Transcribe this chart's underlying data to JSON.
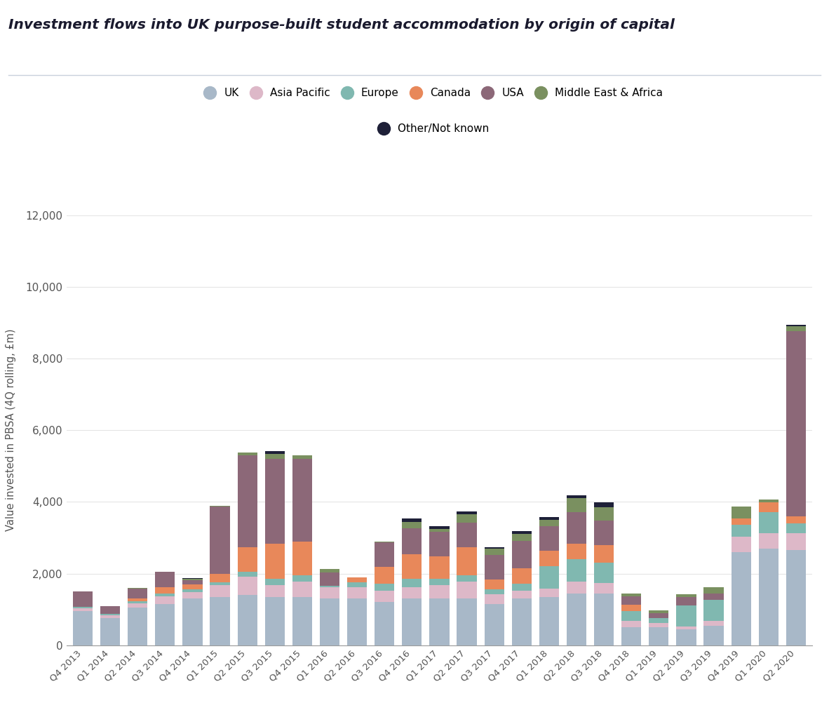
{
  "title": "Investment flows into UK purpose-built student accommodation by origin of capital",
  "ylabel": "Value invested in PBSA (4Q rolling, £m)",
  "categories": [
    "Q4 2013",
    "Q1 2014",
    "Q2 2014",
    "Q3 2014",
    "Q4 2014",
    "Q1 2015",
    "Q2 2015",
    "Q3 2015",
    "Q4 2015",
    "Q1 2016",
    "Q2 2016",
    "Q3 2016",
    "Q4 2016",
    "Q1 2017",
    "Q2 2017",
    "Q3 2017",
    "Q4 2017",
    "Q1 2018",
    "Q2 2018",
    "Q3 2018",
    "Q4 2018",
    "Q1 2019",
    "Q2 2019",
    "Q3 2019",
    "Q4 2019",
    "Q1 2020",
    "Q2 2020"
  ],
  "series": {
    "UK": [
      950,
      750,
      1050,
      1150,
      1300,
      1350,
      1400,
      1350,
      1350,
      1300,
      1300,
      1200,
      1300,
      1300,
      1300,
      1150,
      1300,
      1350,
      1450,
      1450,
      500,
      500,
      450,
      550,
      2600,
      2700,
      2650
    ],
    "Asia Pacific": [
      80,
      80,
      130,
      220,
      180,
      330,
      520,
      330,
      430,
      330,
      330,
      330,
      330,
      380,
      480,
      280,
      230,
      230,
      330,
      280,
      180,
      130,
      80,
      130,
      430,
      430,
      480
    ],
    "Europe": [
      40,
      40,
      40,
      80,
      80,
      80,
      130,
      180,
      180,
      30,
      130,
      180,
      230,
      180,
      180,
      130,
      180,
      630,
      630,
      580,
      280,
      130,
      580,
      580,
      330,
      580,
      280
    ],
    "Canada": [
      0,
      0,
      80,
      180,
      130,
      230,
      680,
      980,
      930,
      0,
      130,
      480,
      680,
      630,
      780,
      280,
      430,
      430,
      430,
      480,
      180,
      0,
      0,
      0,
      180,
      280,
      180
    ],
    "USA": [
      430,
      230,
      280,
      430,
      130,
      1880,
      2570,
      2370,
      2320,
      380,
      0,
      680,
      730,
      680,
      680,
      680,
      780,
      680,
      880,
      680,
      230,
      130,
      230,
      180,
      0,
      0,
      5180
    ],
    "Middle East & Africa": [
      0,
      0,
      30,
      0,
      30,
      30,
      80,
      130,
      80,
      80,
      0,
      30,
      180,
      80,
      230,
      180,
      180,
      180,
      380,
      380,
      80,
      80,
      80,
      180,
      330,
      80,
      130
    ],
    "Other/Not known": [
      0,
      0,
      0,
      0,
      30,
      0,
      0,
      80,
      0,
      0,
      0,
      0,
      80,
      80,
      80,
      30,
      80,
      80,
      80,
      130,
      0,
      0,
      0,
      0,
      0,
      0,
      30
    ]
  },
  "colors": {
    "UK": "#a8b8c8",
    "Asia Pacific": "#ddb8c8",
    "Europe": "#80b8b0",
    "Canada": "#e8885a",
    "USA": "#8c6878",
    "Middle East & Africa": "#7a9060",
    "Other/Not known": "#1e2038"
  },
  "ylim": [
    0,
    12000
  ],
  "yticks": [
    0,
    2000,
    4000,
    6000,
    8000,
    10000,
    12000
  ],
  "background_color": "#ffffff",
  "title_fontsize": 14.5,
  "bar_width": 0.72
}
